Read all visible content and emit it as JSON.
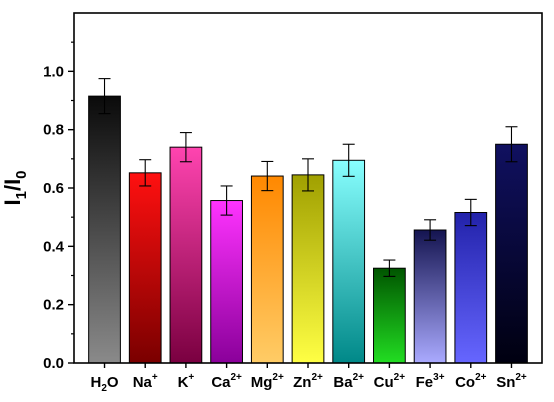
{
  "chart_data": {
    "type": "bar",
    "title": "",
    "xlabel": "",
    "ylabel": {
      "base": "I",
      "sub1": "1",
      "mid": "/I",
      "sub2": "0"
    },
    "ylim": [
      0.0,
      1.2
    ],
    "yticks": [
      0.0,
      0.2,
      0.4,
      0.6,
      0.8,
      1.0
    ],
    "ytick_labels": [
      "0.0",
      "0.2",
      "0.4",
      "0.6",
      "0.8",
      "1.0"
    ],
    "categories": [
      {
        "base": "H",
        "sub": "2",
        "tail": "O",
        "sup": ""
      },
      {
        "base": "Na",
        "sub": "",
        "tail": "",
        "sup": "+"
      },
      {
        "base": "K",
        "sub": "",
        "tail": "",
        "sup": "+"
      },
      {
        "base": "Ca",
        "sub": "",
        "tail": "",
        "sup": "2+"
      },
      {
        "base": "Mg",
        "sub": "",
        "tail": "",
        "sup": "2+"
      },
      {
        "base": "Zn",
        "sub": "",
        "tail": "",
        "sup": "2+"
      },
      {
        "base": "Ba",
        "sub": "",
        "tail": "",
        "sup": "2+"
      },
      {
        "base": "Cu",
        "sub": "",
        "tail": "",
        "sup": "2+"
      },
      {
        "base": "Fe",
        "sub": "",
        "tail": "",
        "sup": "3+"
      },
      {
        "base": "Co",
        "sub": "",
        "tail": "",
        "sup": "2+"
      },
      {
        "base": "Sn",
        "sub": "",
        "tail": "",
        "sup": "2+"
      }
    ],
    "values": [
      0.915,
      0.652,
      0.74,
      0.557,
      0.641,
      0.645,
      0.695,
      0.325,
      0.456,
      0.516,
      0.75
    ],
    "errors": [
      0.06,
      0.045,
      0.05,
      0.05,
      0.05,
      0.055,
      0.055,
      0.028,
      0.035,
      0.045,
      0.06
    ],
    "colors": [
      {
        "top": "#0a0a0a",
        "bottom": "#8a8a8a"
      },
      {
        "top": "#ff1010",
        "bottom": "#7a0000"
      },
      {
        "top": "#ff44b0",
        "bottom": "#7a0040"
      },
      {
        "top": "#ff33ff",
        "bottom": "#8a009a"
      },
      {
        "top": "#ff8800",
        "bottom": "#ffcc66"
      },
      {
        "top": "#a0a000",
        "bottom": "#ffff44"
      },
      {
        "top": "#88ffff",
        "bottom": "#008888"
      },
      {
        "top": "#005500",
        "bottom": "#22dd22"
      },
      {
        "top": "#141450",
        "bottom": "#aaaaff"
      },
      {
        "top": "#2222aa",
        "bottom": "#6666ff"
      },
      {
        "top": "#101060",
        "bottom": "#000010"
      }
    ],
    "grid": false,
    "legend": "none"
  }
}
